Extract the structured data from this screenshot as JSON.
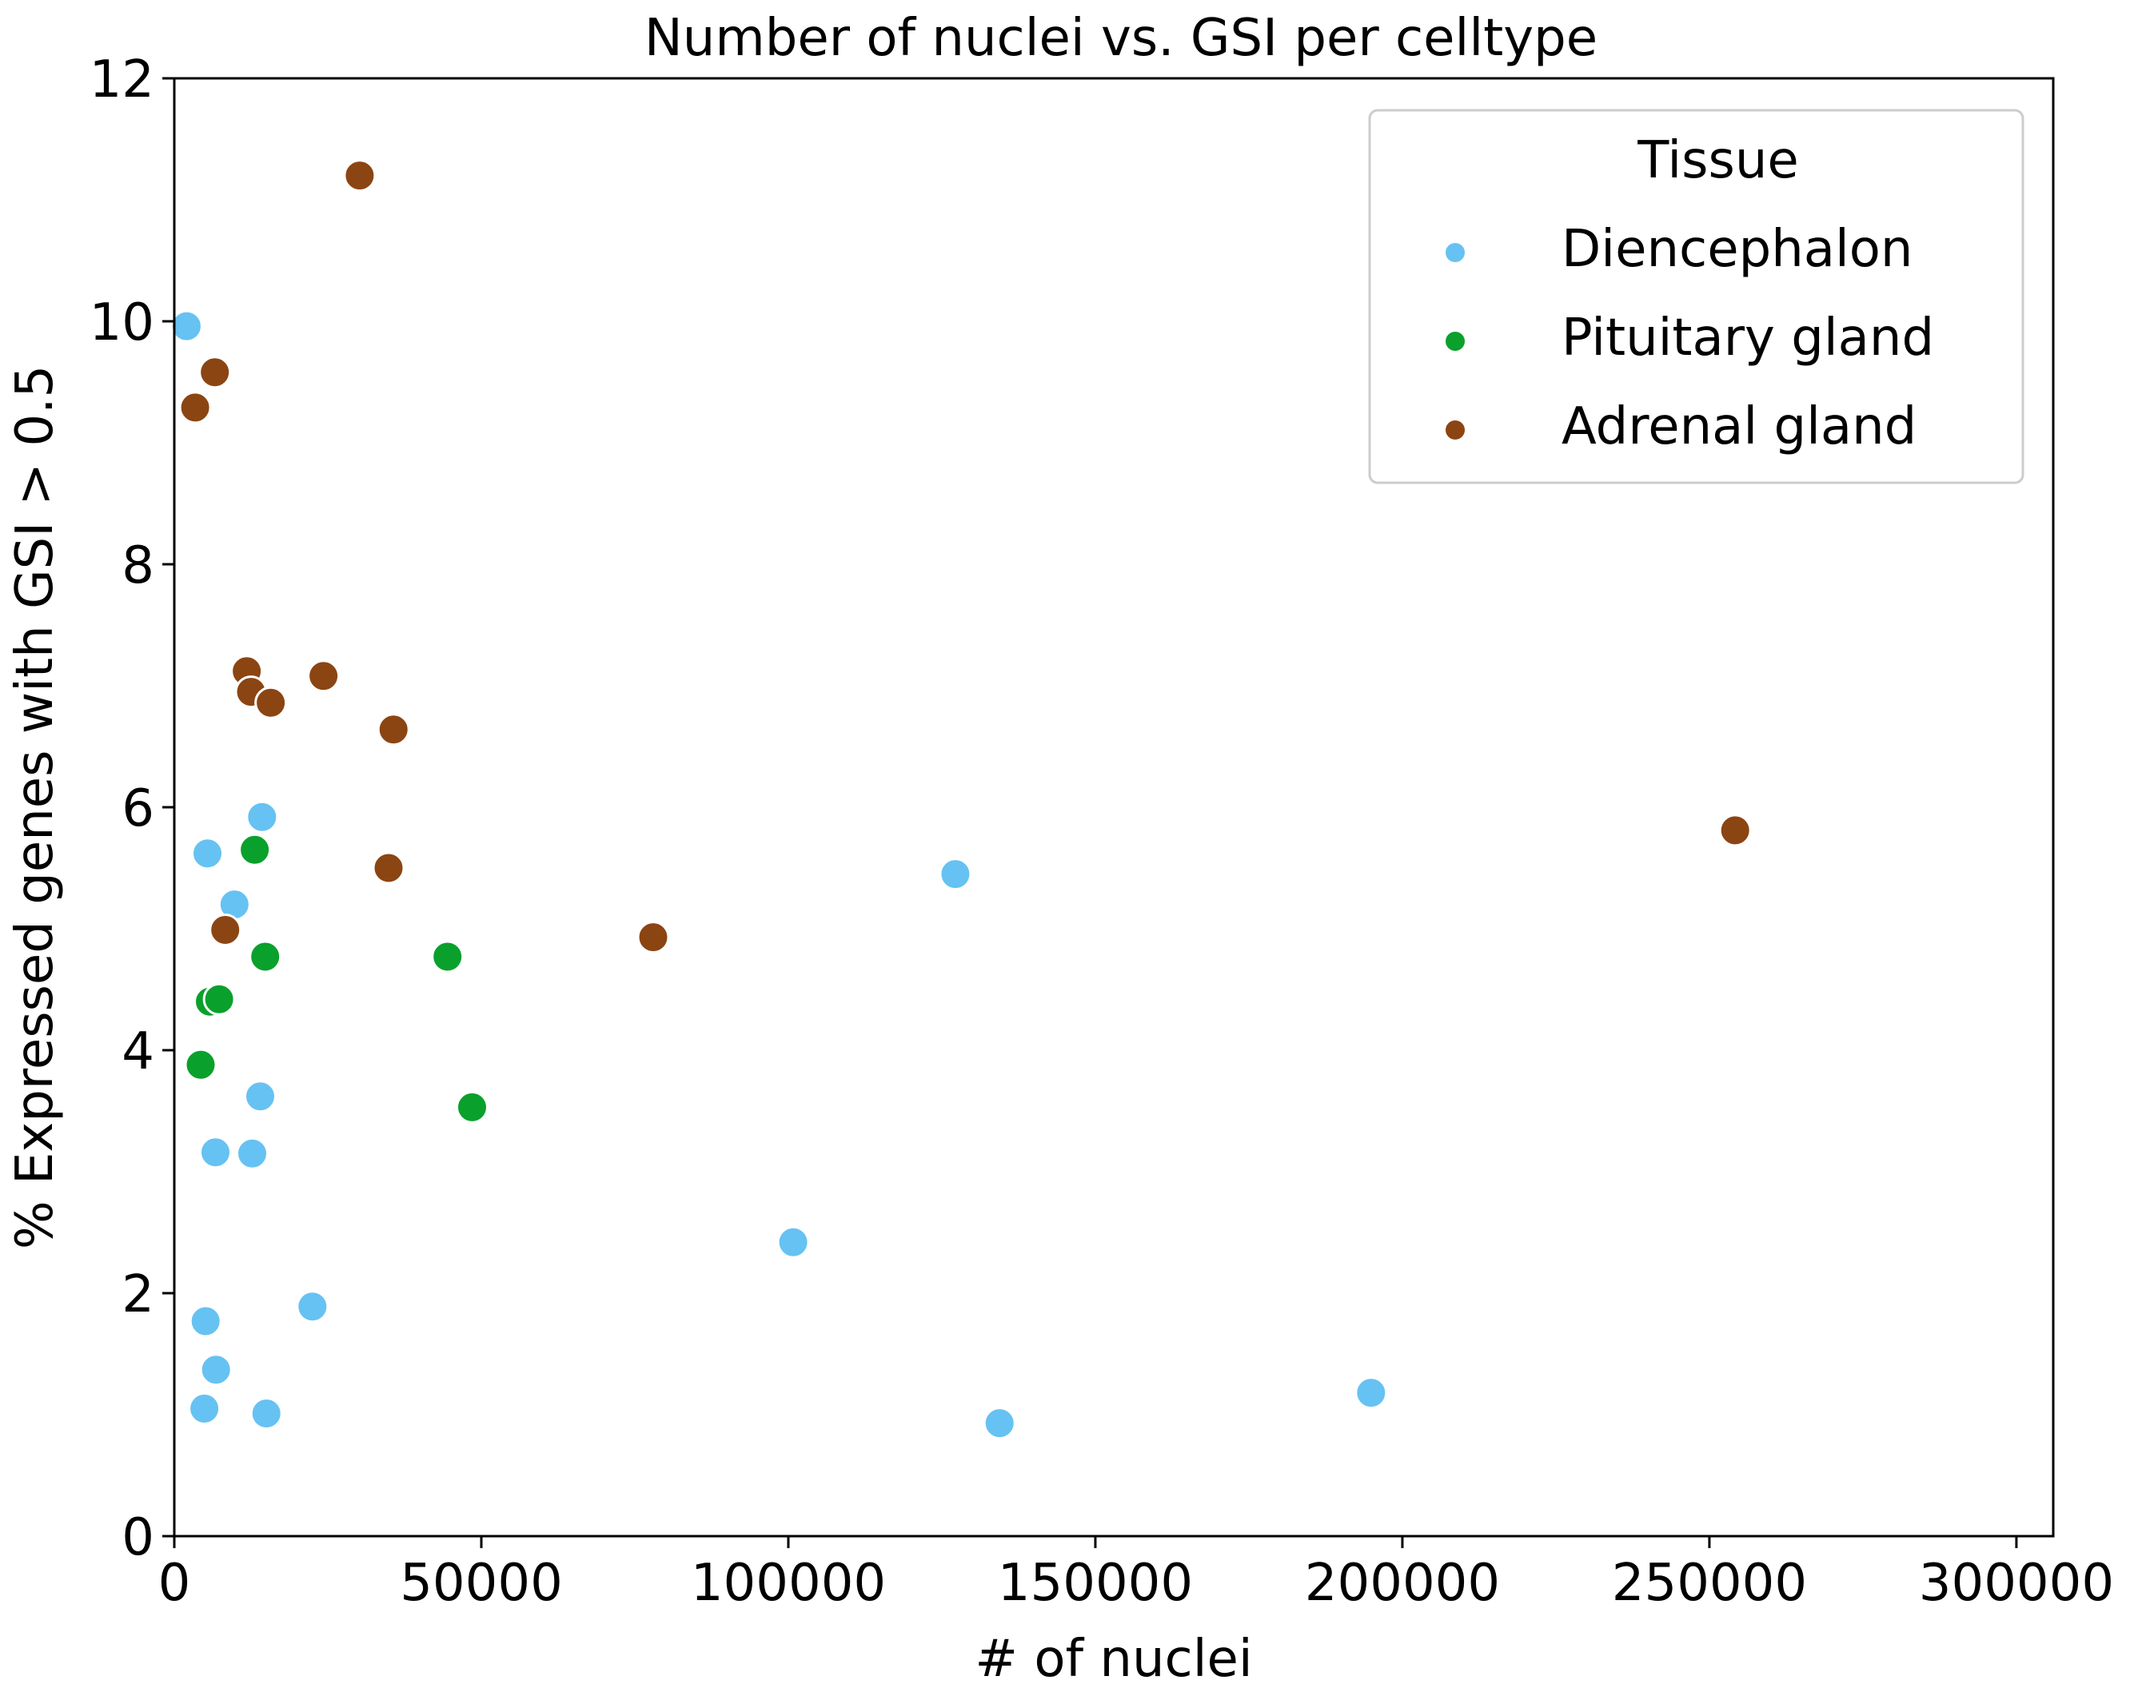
{
  "chart_data": {
    "type": "scatter",
    "title": "Number of nuclei vs. GSI per celltype",
    "xlabel": "# of nuclei",
    "ylabel": "% Expressed genes with GSI > 0.5",
    "xlim": [
      0,
      306000
    ],
    "ylim": [
      0,
      12
    ],
    "x_ticks": [
      0,
      50000,
      100000,
      150000,
      200000,
      250000,
      300000
    ],
    "x_tick_labels": [
      "0",
      "50000",
      "100000",
      "150000",
      "200000",
      "250000",
      "300000"
    ],
    "y_ticks": [
      0,
      2,
      4,
      6,
      8,
      10,
      12
    ],
    "y_tick_labels": [
      "0",
      "2",
      "4",
      "6",
      "8",
      "10",
      "12"
    ],
    "grid": false,
    "legend": {
      "title": "Tissue",
      "placement": "top-right"
    },
    "series": [
      {
        "name": "Diencephalon",
        "color": "#66c2f2",
        "points": [
          {
            "x": 2000,
            "y": 9.96
          },
          {
            "x": 5400,
            "y": 5.62
          },
          {
            "x": 14300,
            "y": 5.92
          },
          {
            "x": 9800,
            "y": 5.2
          },
          {
            "x": 14000,
            "y": 3.62
          },
          {
            "x": 6700,
            "y": 3.16
          },
          {
            "x": 12700,
            "y": 3.15
          },
          {
            "x": 5100,
            "y": 1.77
          },
          {
            "x": 6800,
            "y": 1.37
          },
          {
            "x": 4900,
            "y": 1.05
          },
          {
            "x": 15000,
            "y": 1.01
          },
          {
            "x": 22500,
            "y": 1.89
          },
          {
            "x": 100800,
            "y": 2.42
          },
          {
            "x": 127200,
            "y": 5.45
          },
          {
            "x": 134400,
            "y": 0.93
          },
          {
            "x": 194900,
            "y": 1.18
          }
        ]
      },
      {
        "name": "Pituitary gland",
        "color": "#0aa02c",
        "points": [
          {
            "x": 13100,
            "y": 5.65
          },
          {
            "x": 14800,
            "y": 4.77
          },
          {
            "x": 5800,
            "y": 4.4
          },
          {
            "x": 7300,
            "y": 4.42
          },
          {
            "x": 4300,
            "y": 3.88
          },
          {
            "x": 44500,
            "y": 4.77
          },
          {
            "x": 48500,
            "y": 3.53
          }
        ]
      },
      {
        "name": "Adrenal gland",
        "color": "#8b4513",
        "points": [
          {
            "x": 30200,
            "y": 11.2
          },
          {
            "x": 6600,
            "y": 9.58
          },
          {
            "x": 3400,
            "y": 9.29
          },
          {
            "x": 11800,
            "y": 7.12
          },
          {
            "x": 12500,
            "y": 6.95
          },
          {
            "x": 15700,
            "y": 6.86
          },
          {
            "x": 24300,
            "y": 7.08
          },
          {
            "x": 35700,
            "y": 6.64
          },
          {
            "x": 34900,
            "y": 5.5
          },
          {
            "x": 8300,
            "y": 4.99
          },
          {
            "x": 78000,
            "y": 4.93
          },
          {
            "x": 254200,
            "y": 5.81
          }
        ]
      }
    ]
  }
}
